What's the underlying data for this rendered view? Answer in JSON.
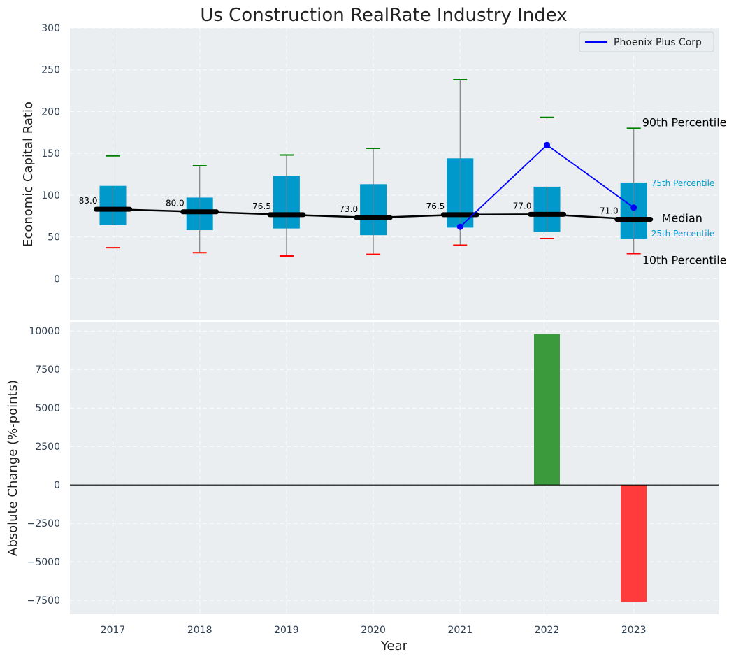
{
  "chart_data": [
    {
      "type": "box",
      "title": "Us Construction RealRate Industry Index",
      "ylabel": "Economic Capital Ratio",
      "ylim": [
        -50,
        300
      ],
      "yticks": [
        0,
        50,
        100,
        150,
        200,
        250,
        300
      ],
      "categories": [
        "2017",
        "2018",
        "2019",
        "2020",
        "2021",
        "2022",
        "2023"
      ],
      "p10": [
        37,
        31,
        27,
        29,
        40,
        48,
        30
      ],
      "p25": [
        64,
        58,
        60,
        52,
        61,
        56,
        48
      ],
      "median": [
        83.0,
        80.0,
        76.5,
        73.0,
        76.5,
        77.0,
        71.0
      ],
      "median_labels": [
        "83.0",
        "80.0",
        "76.5",
        "73.0",
        "76.5",
        "77.0",
        "71.0"
      ],
      "p75": [
        111,
        97,
        123,
        113,
        144,
        110,
        115
      ],
      "p90": [
        147,
        135,
        148,
        156,
        238,
        193,
        180
      ],
      "series": [
        {
          "name": "Phoenix Plus Corp",
          "x": [
            "2021",
            "2022",
            "2023"
          ],
          "values": [
            62,
            160,
            85
          ]
        }
      ],
      "annotations": {
        "p90": "90th Percentile",
        "p75": "75th Percentile",
        "median": "Median",
        "p25": "25th Percentile",
        "p10": "10th Percentile"
      },
      "legend": "top-right",
      "grid": true,
      "colors": {
        "box": "#0099cc",
        "median_line": "#000000",
        "series_line": "#0000ff",
        "p90_cap": "#008000",
        "p10_cap": "#ff0000",
        "whisker": "#808080",
        "background": "#eaeef0",
        "annotation_blue": "#0099cc"
      }
    },
    {
      "type": "bar",
      "ylabel": "Absolute Change (%-points)",
      "xlabel": "Year",
      "ylim": [
        -8400,
        10600
      ],
      "yticks": [
        -7500,
        -5000,
        -2500,
        0,
        2500,
        5000,
        7500,
        10000
      ],
      "ytick_labels": [
        "−7500",
        "−5000",
        "−2500",
        "0",
        "2500",
        "5000",
        "7500",
        "10000"
      ],
      "categories": [
        "2017",
        "2018",
        "2019",
        "2020",
        "2021",
        "2022",
        "2023"
      ],
      "values": [
        0,
        0,
        0,
        0,
        0,
        9800,
        -7600
      ],
      "grid": true,
      "colors": {
        "positive": "#3a9a3c",
        "negative": "#ff3b3b",
        "zero_line": "#000000"
      }
    }
  ]
}
